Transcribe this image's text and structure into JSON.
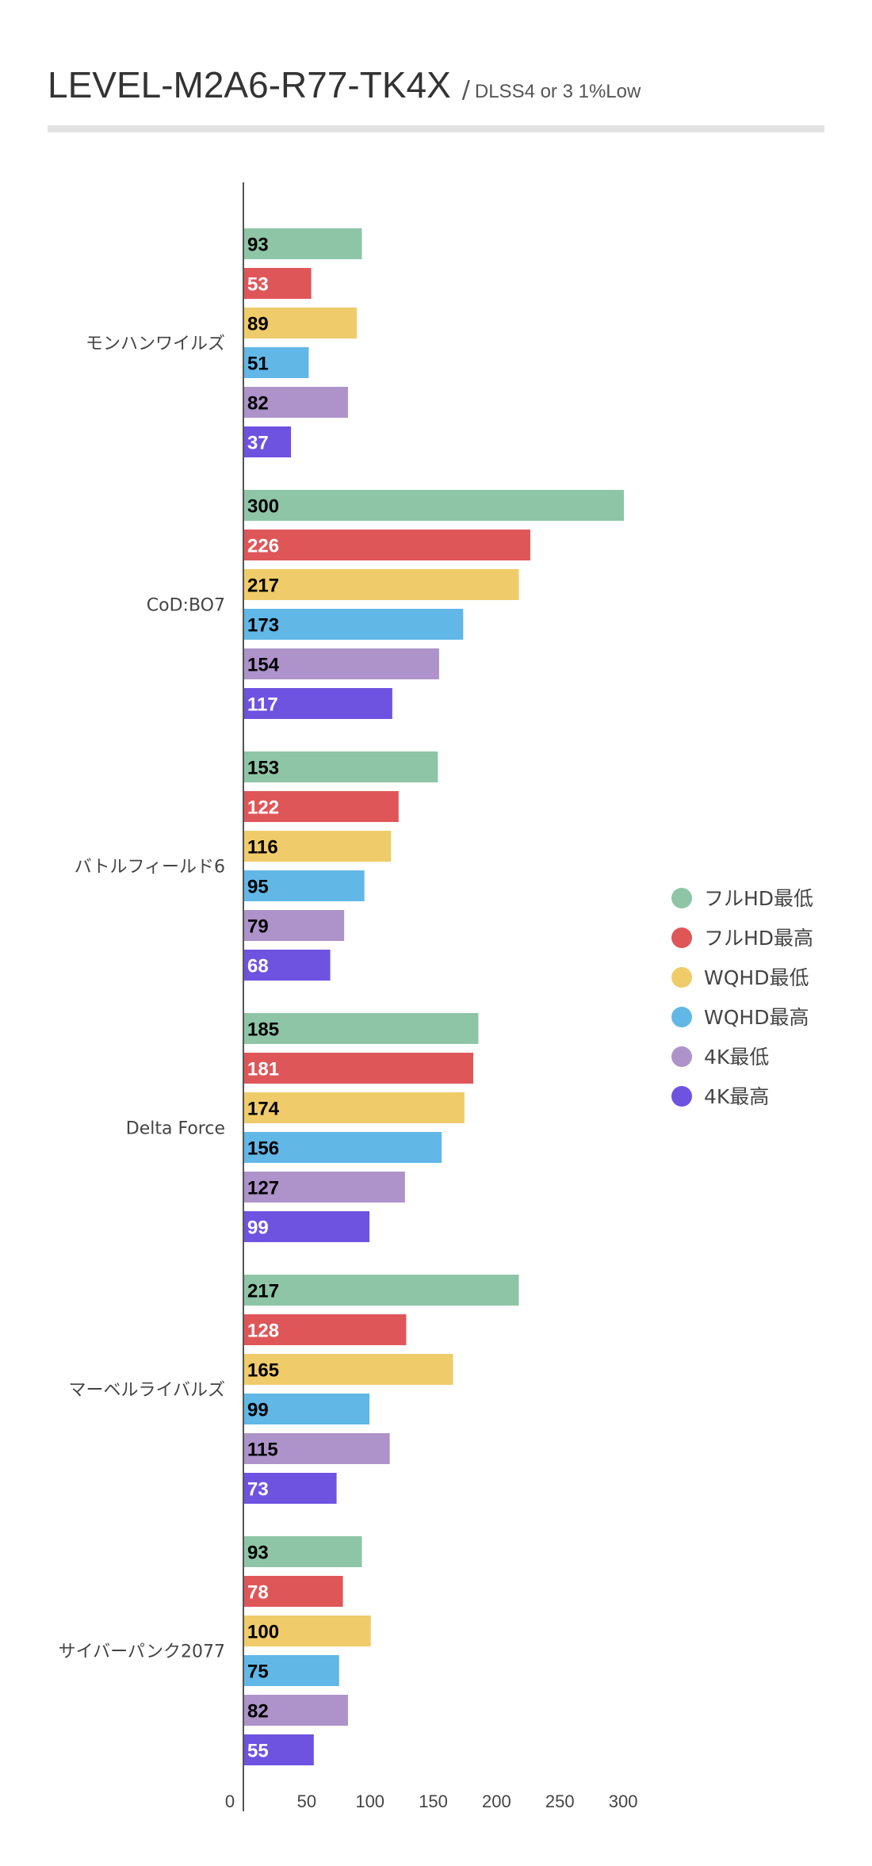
{
  "chart_data": {
    "type": "bar",
    "orientation": "horizontal",
    "title": "LEVEL-M2A6-R77-TK4X",
    "title_separator": "/",
    "subtitle": "DLSS4 or 3 1%Low",
    "categories": [
      "モンハンワイルズ",
      "CoD:BO7",
      "バトルフィールド6",
      "Delta Force",
      "マーベルライバルズ",
      "サイバーパンク2077"
    ],
    "series": [
      {
        "name": "フルHD最低",
        "color": "#8ec5a6",
        "label_color": "#000000",
        "values": [
          93,
          300,
          153,
          185,
          217,
          93
        ]
      },
      {
        "name": "フルHD最高",
        "color": "#df5659",
        "label_color": "#ffffff",
        "values": [
          53,
          226,
          122,
          181,
          128,
          78
        ]
      },
      {
        "name": "WQHD最低",
        "color": "#f0cb6a",
        "label_color": "#000000",
        "values": [
          89,
          217,
          116,
          174,
          165,
          100
        ]
      },
      {
        "name": "WQHD最高",
        "color": "#61b7e6",
        "label_color": "#000000",
        "values": [
          51,
          173,
          95,
          156,
          99,
          75
        ]
      },
      {
        "name": "4K最低",
        "color": "#ad93c9",
        "label_color": "#000000",
        "values": [
          82,
          154,
          79,
          127,
          115,
          82
        ]
      },
      {
        "name": "4K最高",
        "color": "#6e52e0",
        "label_color": "#ffffff",
        "values": [
          37,
          117,
          68,
          99,
          73,
          55
        ]
      }
    ],
    "xlim": [
      0,
      300
    ],
    "xticks": [
      0,
      50,
      100,
      150,
      200,
      250,
      300
    ],
    "xlabel": "",
    "ylabel": "",
    "grid": false,
    "legend_position": "right"
  }
}
